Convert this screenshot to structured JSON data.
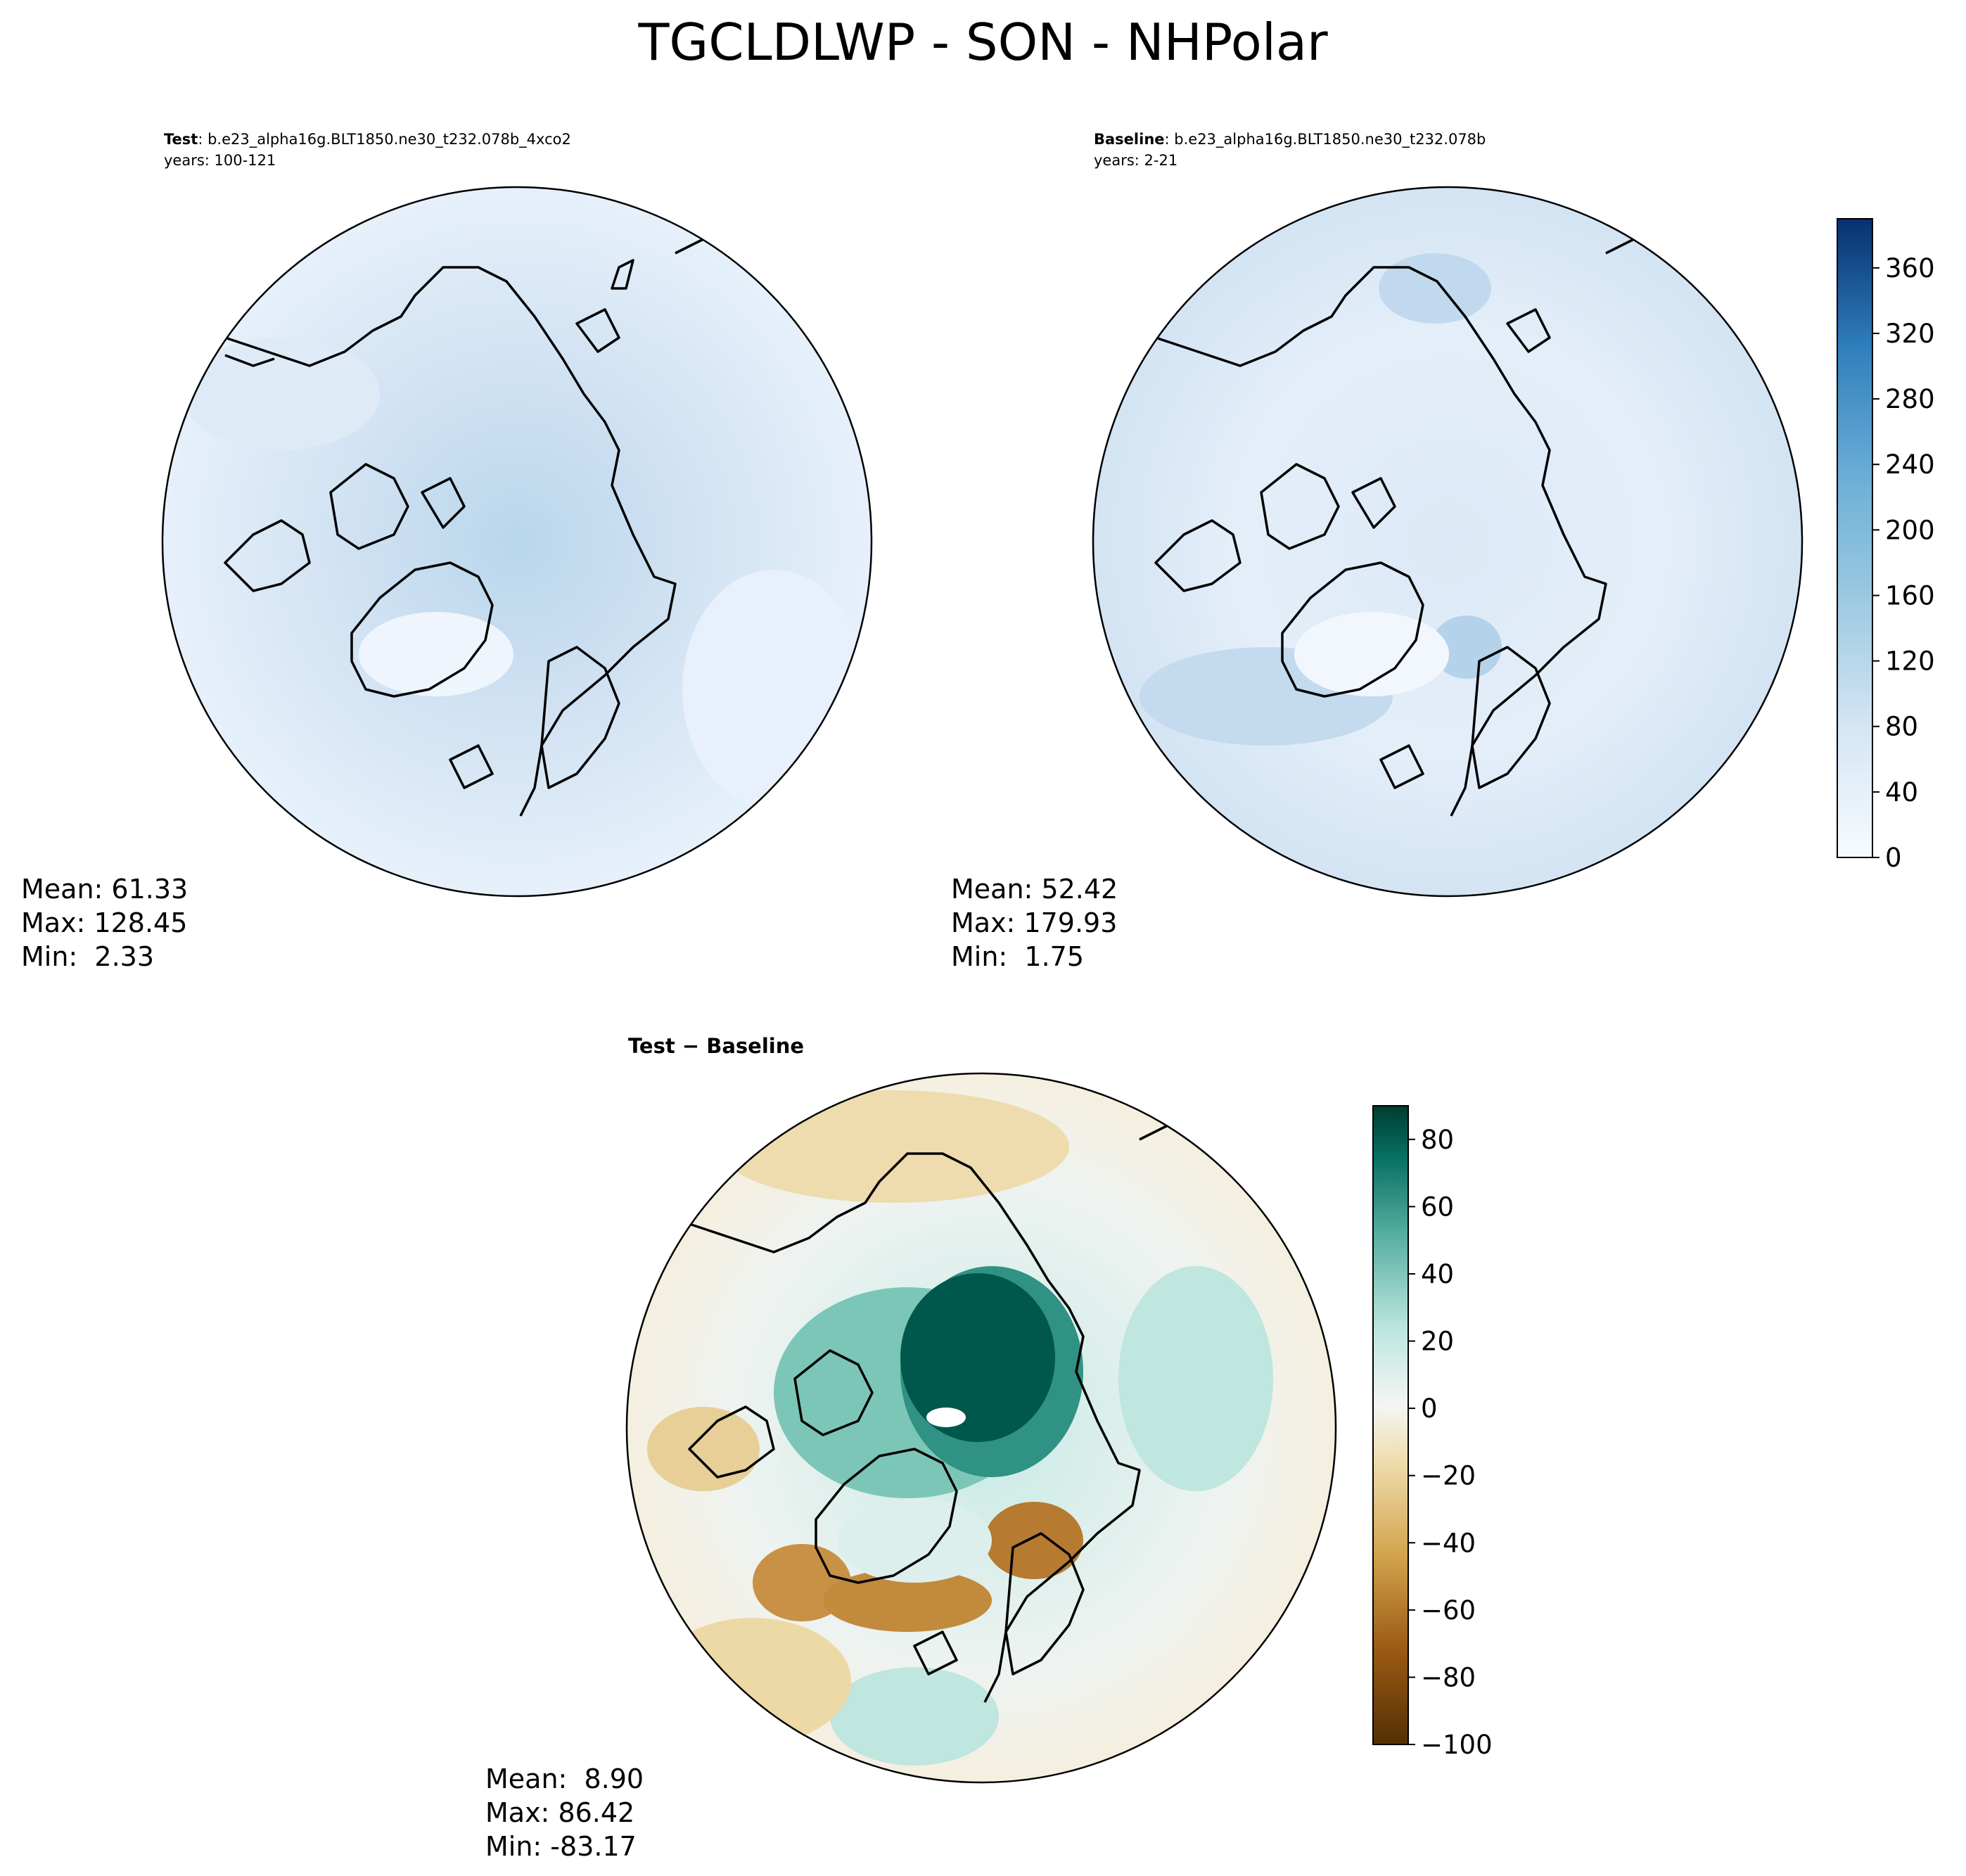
{
  "title": "TGCLDLWP - SON - NHPolar",
  "panels": {
    "test": {
      "label": "Test",
      "case": ": b.e23_alpha16g.BLT1850.ne30_t232.078b_4xco2",
      "years": "years: 100-121",
      "stats": {
        "mean": "Mean: 61.33",
        "max": "Max: 128.45",
        "min": "Min:  2.33"
      }
    },
    "baseline": {
      "label": "Baseline",
      "case": ": b.e23_alpha16g.BLT1850.ne30_t232.078b",
      "years": "years: 2-21",
      "stats": {
        "mean": "Mean: 52.42",
        "max": "Max: 179.93",
        "min": "Min:  1.75"
      }
    },
    "diff": {
      "title": "Test − Baseline",
      "stats": {
        "mean": "Mean:  8.90",
        "max": "Max: 86.42",
        "min": "Min: -83.17"
      }
    }
  },
  "colorbars": {
    "main": {
      "range": [
        0,
        390
      ],
      "ticks": [
        "0",
        "40",
        "80",
        "120",
        "160",
        "200",
        "240",
        "280",
        "320",
        "360"
      ],
      "tick_values": [
        0,
        40,
        80,
        120,
        160,
        200,
        240,
        280,
        320,
        360
      ],
      "colors": [
        "#f7fbff",
        "#083070"
      ]
    },
    "diff": {
      "range": [
        -100,
        90
      ],
      "ticks": [
        "−100",
        "−80",
        "−60",
        "−40",
        "−20",
        "0",
        "20",
        "40",
        "60",
        "80"
      ],
      "tick_values": [
        -100,
        -80,
        -60,
        -40,
        -20,
        0,
        20,
        40,
        60,
        80
      ],
      "colors": [
        "#543005",
        "#f5f5f5",
        "#003c30"
      ]
    }
  }
}
